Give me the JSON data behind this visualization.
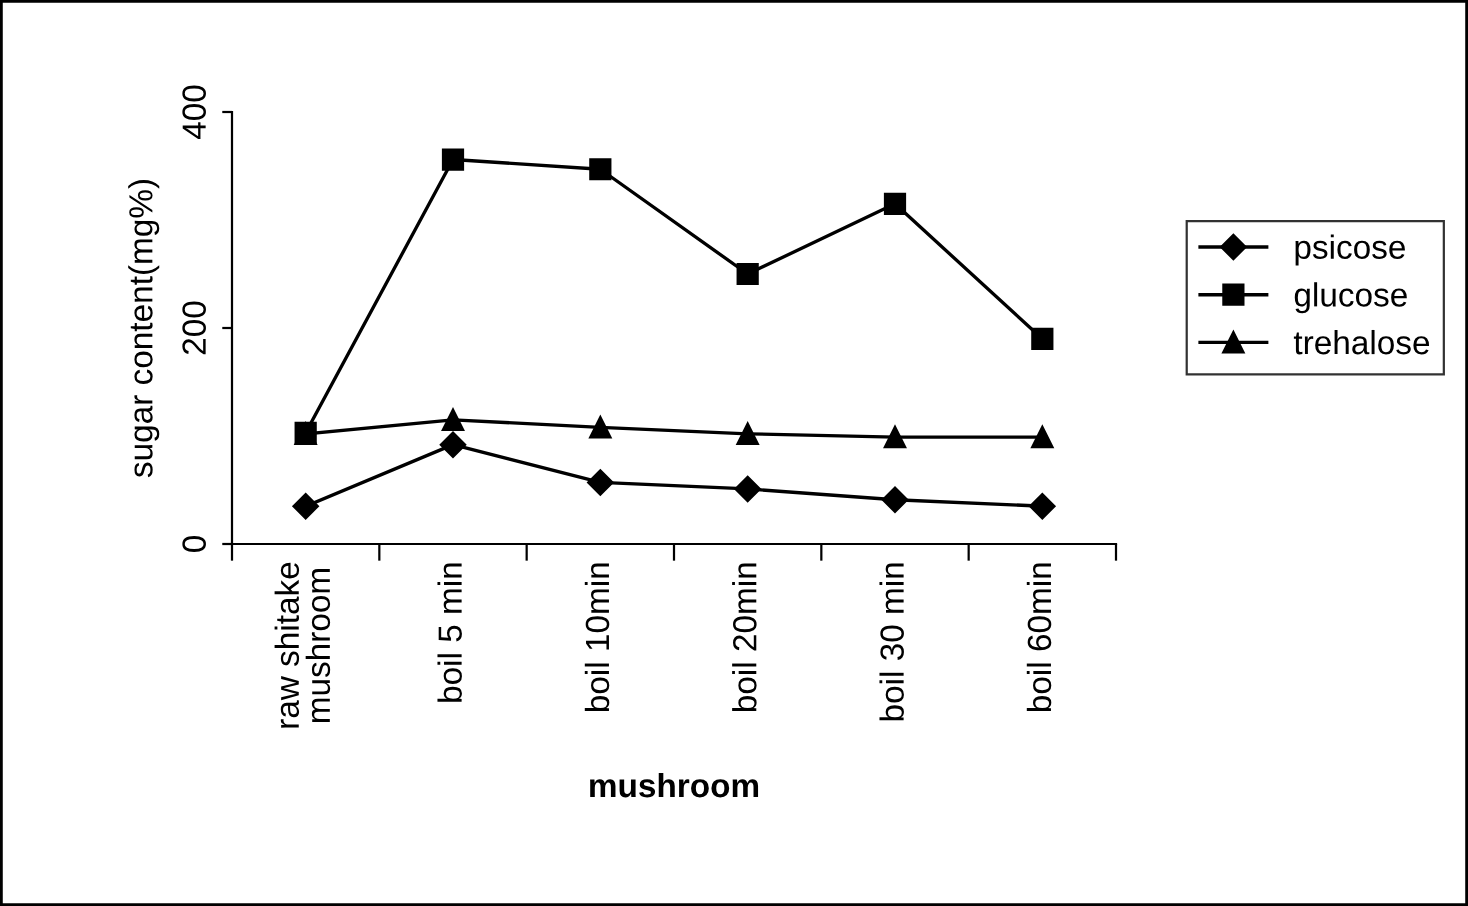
{
  "chart_data": {
    "type": "line",
    "xlabel": "mushroom",
    "ylabel": "sugar content(mg%)",
    "categories": [
      "raw shitake\nmushroom",
      "boil 5 min",
      "boil 10min",
      "boil 20min",
      "boil 30 min",
      "boil 60min"
    ],
    "series": [
      {
        "name": "psicose",
        "color": "#000000",
        "marker": "diamond",
        "values": [
          35,
          92,
          57,
          51,
          41,
          35
        ]
      },
      {
        "name": "glucose",
        "color": "#000000",
        "marker": "square",
        "values": [
          103,
          356,
          347,
          250,
          315,
          190
        ]
      },
      {
        "name": "trehalose",
        "color": "#000000",
        "marker": "triangle",
        "values": [
          102,
          115,
          108,
          102,
          99,
          99
        ]
      }
    ],
    "ylim": [
      0,
      400
    ],
    "yticks": [
      0,
      200,
      400
    ],
    "grid": false,
    "legend": "right",
    "line_style": "solid"
  }
}
